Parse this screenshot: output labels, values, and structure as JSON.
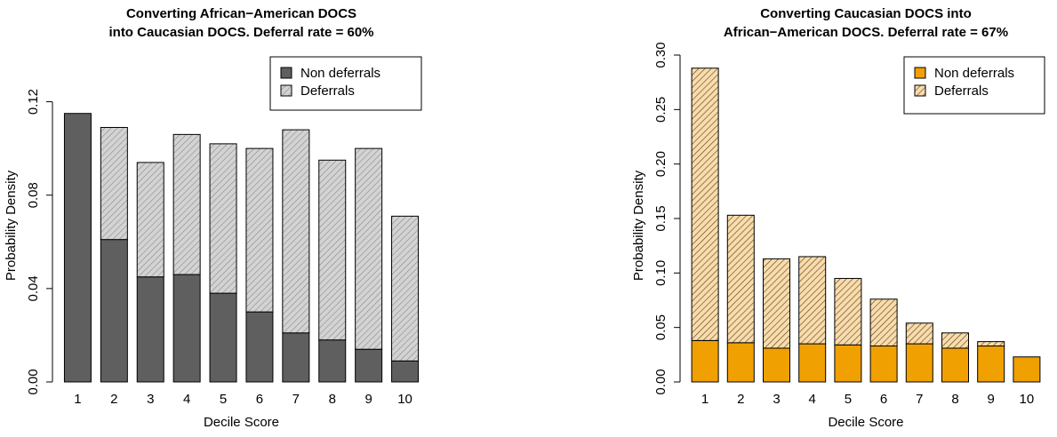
{
  "chart_data": [
    {
      "type": "bar",
      "stacked": true,
      "title": "Converting African−American DOCS\ninto Caucasian DOCS. Deferral rate = 60%",
      "xlabel": "Decile Score",
      "ylabel": "Probability Density",
      "categories": [
        "1",
        "2",
        "3",
        "4",
        "5",
        "6",
        "7",
        "8",
        "9",
        "10"
      ],
      "ylim": [
        0,
        0.14
      ],
      "yticks": [
        "0.00",
        "0.04",
        "0.08",
        "0.12"
      ],
      "ytick_values": [
        0,
        0.04,
        0.08,
        0.12
      ],
      "legend_position": "top-right",
      "series": [
        {
          "name": "Non deferrals",
          "color": "#5f5f5f",
          "hatch": false,
          "values": [
            0.115,
            0.061,
            0.045,
            0.046,
            0.038,
            0.03,
            0.021,
            0.018,
            0.014,
            0.009
          ]
        },
        {
          "name": "Deferrals",
          "color": "#d3d3d3",
          "hatch": true,
          "values": [
            0.0,
            0.048,
            0.049,
            0.06,
            0.064,
            0.07,
            0.087,
            0.077,
            0.086,
            0.062
          ]
        }
      ]
    },
    {
      "type": "bar",
      "stacked": true,
      "title": "Converting Caucasian DOCS into\nAfrican−American DOCS. Deferral rate = 67%",
      "xlabel": "Decile Score",
      "ylabel": "Probability Density",
      "categories": [
        "1",
        "2",
        "3",
        "4",
        "5",
        "6",
        "7",
        "8",
        "9",
        "10"
      ],
      "ylim": [
        0,
        0.3
      ],
      "yticks": [
        "0.00",
        "0.05",
        "0.10",
        "0.15",
        "0.20",
        "0.25",
        "0.30"
      ],
      "ytick_values": [
        0,
        0.05,
        0.1,
        0.15,
        0.2,
        0.25,
        0.3
      ],
      "legend_position": "top-right",
      "series": [
        {
          "name": "Non deferrals",
          "color": "#f0a000",
          "hatch": false,
          "values": [
            0.038,
            0.036,
            0.031,
            0.035,
            0.034,
            0.033,
            0.035,
            0.031,
            0.033,
            0.023
          ]
        },
        {
          "name": "Deferrals",
          "color": "#f8dcae",
          "hatch": true,
          "values": [
            0.25,
            0.117,
            0.082,
            0.08,
            0.061,
            0.043,
            0.019,
            0.014,
            0.004,
            0.0
          ]
        }
      ]
    }
  ]
}
